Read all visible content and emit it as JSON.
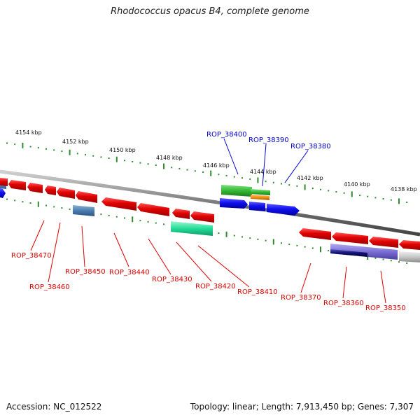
{
  "title": "Rhodococcus opacus B4, complete genome",
  "accession_label": "Accession: NC_012522",
  "summary_label": "Topology: linear; Length: 7,913,450 bp; Genes: 7,307",
  "kbp_ticks": [
    "4154 kbp",
    "4152 kbp",
    "4150 kbp",
    "4148 kbp",
    "4146 kbp",
    "4144 kbp",
    "4142 kbp",
    "4140 kbp",
    "4138 kbp"
  ],
  "top_genes": [
    "ROP_38400",
    "ROP_38390",
    "ROP_38380"
  ],
  "bottom_genes": [
    "ROP_38470",
    "ROP_38460",
    "ROP_38450",
    "ROP_38440",
    "ROP_38430",
    "ROP_38420",
    "ROP_38410",
    "ROP_38370",
    "ROP_38360",
    "ROP_38350"
  ],
  "colors": {
    "backbone": "#8a8a8a",
    "tick": "#2e8b2e",
    "top_label": "#0000cc",
    "bottom_label": "#cc0000",
    "gene_red": "#e00000",
    "gene_blue": "#1010ee",
    "gene_steel": "#4a7db0",
    "gene_green": "#33b833",
    "gene_orange": "#f09010",
    "gene_teal": "#22dd99",
    "gene_navy": "#101070",
    "gene_lavender": "#7b6fd6",
    "gene_gray": "#c8c8c8"
  }
}
